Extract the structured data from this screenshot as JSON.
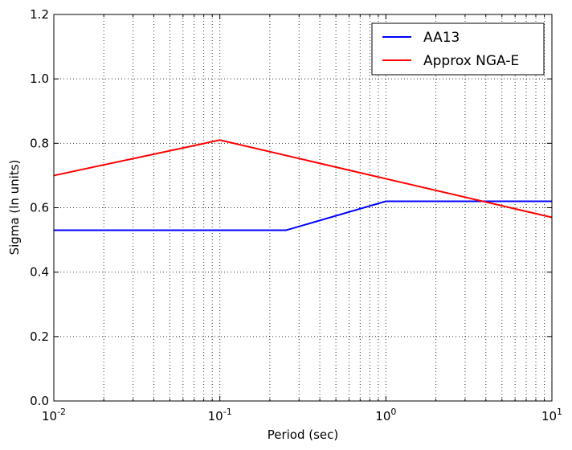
{
  "chart_data": {
    "type": "line",
    "xlabel": "Period (sec)",
    "ylabel": "Sigma (ln units)",
    "xscale": "log",
    "xlim": [
      0.01,
      10
    ],
    "ylim": [
      0.0,
      1.2
    ],
    "yticks": [
      0.0,
      0.2,
      0.4,
      0.6,
      0.8,
      1.0,
      1.2
    ],
    "ytick_labels": [
      "0.0",
      "0.2",
      "0.4",
      "0.6",
      "0.8",
      "1.0",
      "1.2"
    ],
    "xticks": [
      {
        "value": 0.01,
        "base": "10",
        "exp": "-2"
      },
      {
        "value": 0.1,
        "base": "10",
        "exp": "-1"
      },
      {
        "value": 1,
        "base": "10",
        "exp": "0"
      },
      {
        "value": 10,
        "base": "10",
        "exp": "1"
      }
    ],
    "grid": true,
    "legend_position": "top-right",
    "series": [
      {
        "name": "AA13",
        "color": "#0000ff",
        "x": [
          0.01,
          0.25,
          1,
          10
        ],
        "y": [
          0.53,
          0.53,
          0.62,
          0.62
        ]
      },
      {
        "name": "Approx NGA-E",
        "color": "#ff0000",
        "x": [
          0.01,
          0.1,
          10
        ],
        "y": [
          0.7,
          0.81,
          0.57
        ]
      }
    ]
  }
}
